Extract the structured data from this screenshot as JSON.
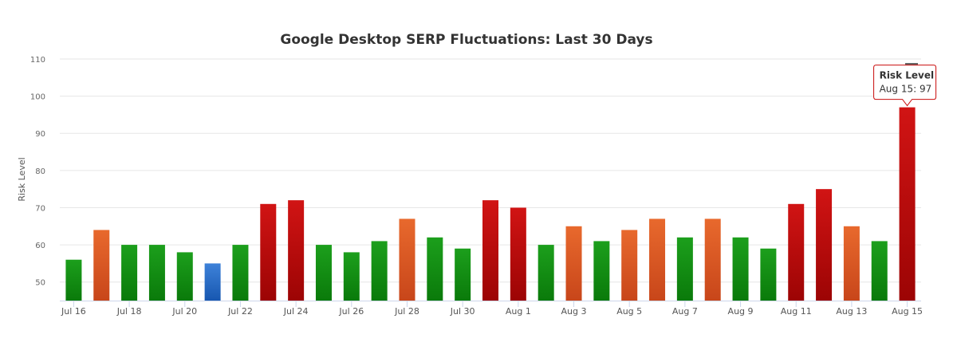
{
  "chart_data": {
    "type": "bar",
    "title": "Google Desktop SERP Fluctuations: Last 30 Days",
    "ylabel": "Risk Level",
    "xlabel": "",
    "ylim": [
      45,
      110
    ],
    "yticks": [
      50,
      60,
      70,
      80,
      90,
      100,
      110
    ],
    "grid": true,
    "categories": [
      "Jul 16",
      "Jul 17",
      "Jul 18",
      "Jul 19",
      "Jul 20",
      "Jul 21",
      "Jul 22",
      "Jul 23",
      "Jul 24",
      "Jul 25",
      "Jul 26",
      "Jul 27",
      "Jul 28",
      "Jul 29",
      "Jul 30",
      "Jul 31",
      "Aug 1",
      "Aug 2",
      "Aug 3",
      "Aug 4",
      "Aug 5",
      "Aug 6",
      "Aug 7",
      "Aug 8",
      "Aug 9",
      "Aug 10",
      "Aug 11",
      "Aug 12",
      "Aug 13",
      "Aug 14",
      "Aug 15"
    ],
    "x_tick_labels": [
      "Jul 16",
      "Jul 18",
      "Jul 20",
      "Jul 22",
      "Jul 24",
      "Jul 26",
      "Jul 28",
      "Jul 30",
      "Aug 1",
      "Aug 3",
      "Aug 5",
      "Aug 7",
      "Aug 9",
      "Aug 11",
      "Aug 13",
      "Aug 15"
    ],
    "series": [
      {
        "values": [
          56,
          64,
          60,
          60,
          58,
          55,
          60,
          71,
          72,
          60,
          58,
          61,
          67,
          62,
          59,
          72,
          70,
          60,
          65,
          61,
          64,
          67,
          62,
          67,
          62,
          59,
          71,
          75,
          65,
          61,
          97
        ]
      }
    ],
    "colors": {
      "low": [
        "#1c9f1c",
        "#0a7a0a"
      ],
      "medium": [
        "#e8692d",
        "#c8461a"
      ],
      "high": [
        "#d11414",
        "#9c0404"
      ],
      "calm": [
        "#3e82d9",
        "#1757b0"
      ]
    },
    "tooltip": {
      "title": "Risk Level",
      "text": "Aug 15: 97",
      "border_color": "#c90c0c"
    }
  }
}
